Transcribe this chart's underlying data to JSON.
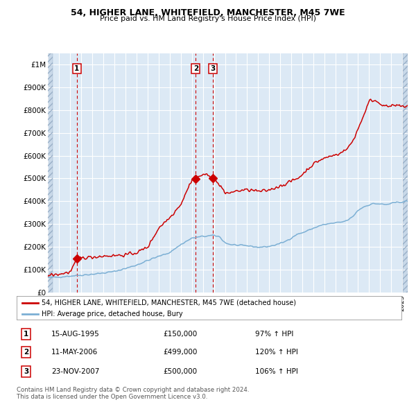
{
  "title": "54, HIGHER LANE, WHITEFIELD, MANCHESTER, M45 7WE",
  "subtitle": "Price paid vs. HM Land Registry's House Price Index (HPI)",
  "sale_label": "54, HIGHER LANE, WHITEFIELD, MANCHESTER, M45 7WE (detached house)",
  "hpi_label": "HPI: Average price, detached house, Bury",
  "transactions": [
    {
      "num": 1,
      "date": "15-AUG-1995",
      "price": 150000,
      "pct": "97%",
      "x_year": 1995.62
    },
    {
      "num": 2,
      "date": "11-MAY-2006",
      "price": 499000,
      "pct": "120%",
      "x_year": 2006.36
    },
    {
      "num": 3,
      "date": "23-NOV-2007",
      "price": 500000,
      "pct": "106%",
      "x_year": 2007.9
    }
  ],
  "red_line_color": "#cc0000",
  "blue_line_color": "#7bafd4",
  "marker_color": "#cc0000",
  "dashed_line_color": "#cc0000",
  "background_color": "#dce9f5",
  "grid_color": "#ffffff",
  "box_color": "#cc0000",
  "footer_text": "Contains HM Land Registry data © Crown copyright and database right 2024.\nThis data is licensed under the Open Government Licence v3.0.",
  "ylim": [
    0,
    1050000
  ],
  "yticks": [
    0,
    100000,
    200000,
    300000,
    400000,
    500000,
    600000,
    700000,
    800000,
    900000,
    1000000
  ],
  "ytick_labels": [
    "£0",
    "£100K",
    "£200K",
    "£300K",
    "£400K",
    "£500K",
    "£600K",
    "£700K",
    "£800K",
    "£900K",
    "£1M"
  ],
  "xlim_start": 1993.0,
  "xlim_end": 2025.5
}
